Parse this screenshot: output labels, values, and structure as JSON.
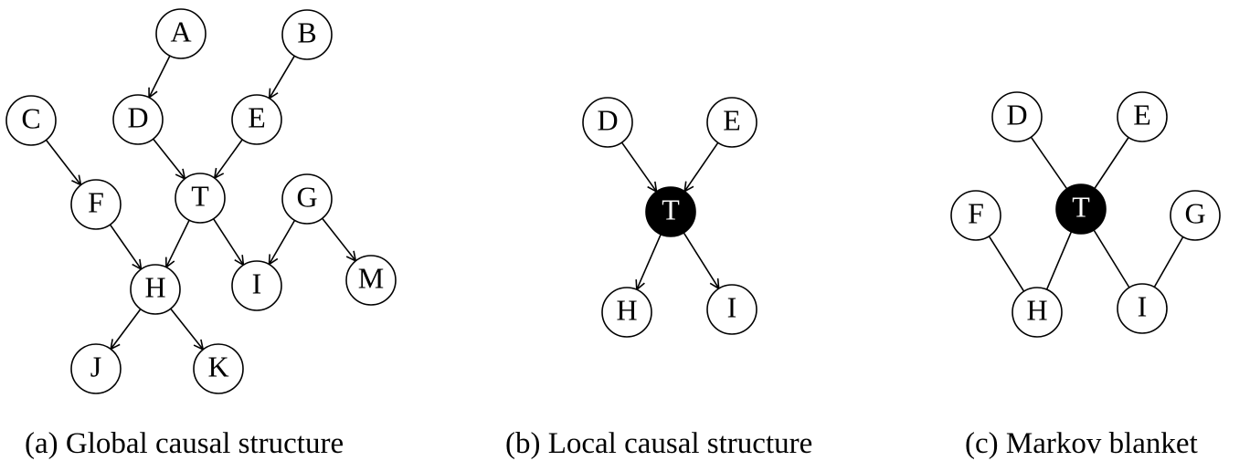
{
  "panels": [
    {
      "id": "a",
      "caption": "(a) Global causal structure",
      "directed": true,
      "nodes": [
        {
          "label": "A"
        },
        {
          "label": "B"
        },
        {
          "label": "C"
        },
        {
          "label": "D"
        },
        {
          "label": "E"
        },
        {
          "label": "F"
        },
        {
          "label": "T"
        },
        {
          "label": "G"
        },
        {
          "label": "H"
        },
        {
          "label": "I"
        },
        {
          "label": "M"
        },
        {
          "label": "J"
        },
        {
          "label": "K"
        }
      ],
      "edges": [
        [
          "A",
          "D"
        ],
        [
          "B",
          "E"
        ],
        [
          "C",
          "F"
        ],
        [
          "D",
          "T"
        ],
        [
          "E",
          "T"
        ],
        [
          "F",
          "H"
        ],
        [
          "T",
          "H"
        ],
        [
          "T",
          "I"
        ],
        [
          "G",
          "I"
        ],
        [
          "G",
          "M"
        ],
        [
          "H",
          "J"
        ],
        [
          "H",
          "K"
        ]
      ]
    },
    {
      "id": "b",
      "caption": "(b) Local causal structure",
      "directed": true,
      "nodes": [
        {
          "label": "D"
        },
        {
          "label": "E"
        },
        {
          "label": "T",
          "highlighted": true
        },
        {
          "label": "H"
        },
        {
          "label": "I"
        }
      ],
      "edges": [
        [
          "D",
          "T"
        ],
        [
          "E",
          "T"
        ],
        [
          "T",
          "H"
        ],
        [
          "T",
          "I"
        ]
      ]
    },
    {
      "id": "c",
      "caption": "(c) Markov blanket",
      "directed": false,
      "nodes": [
        {
          "label": "D"
        },
        {
          "label": "E"
        },
        {
          "label": "F"
        },
        {
          "label": "T",
          "highlighted": true
        },
        {
          "label": "G"
        },
        {
          "label": "H"
        },
        {
          "label": "I"
        }
      ],
      "edges": [
        [
          "D",
          "T"
        ],
        [
          "E",
          "T"
        ],
        [
          "F",
          "H"
        ],
        [
          "T",
          "H"
        ],
        [
          "T",
          "I"
        ],
        [
          "G",
          "I"
        ]
      ]
    }
  ]
}
